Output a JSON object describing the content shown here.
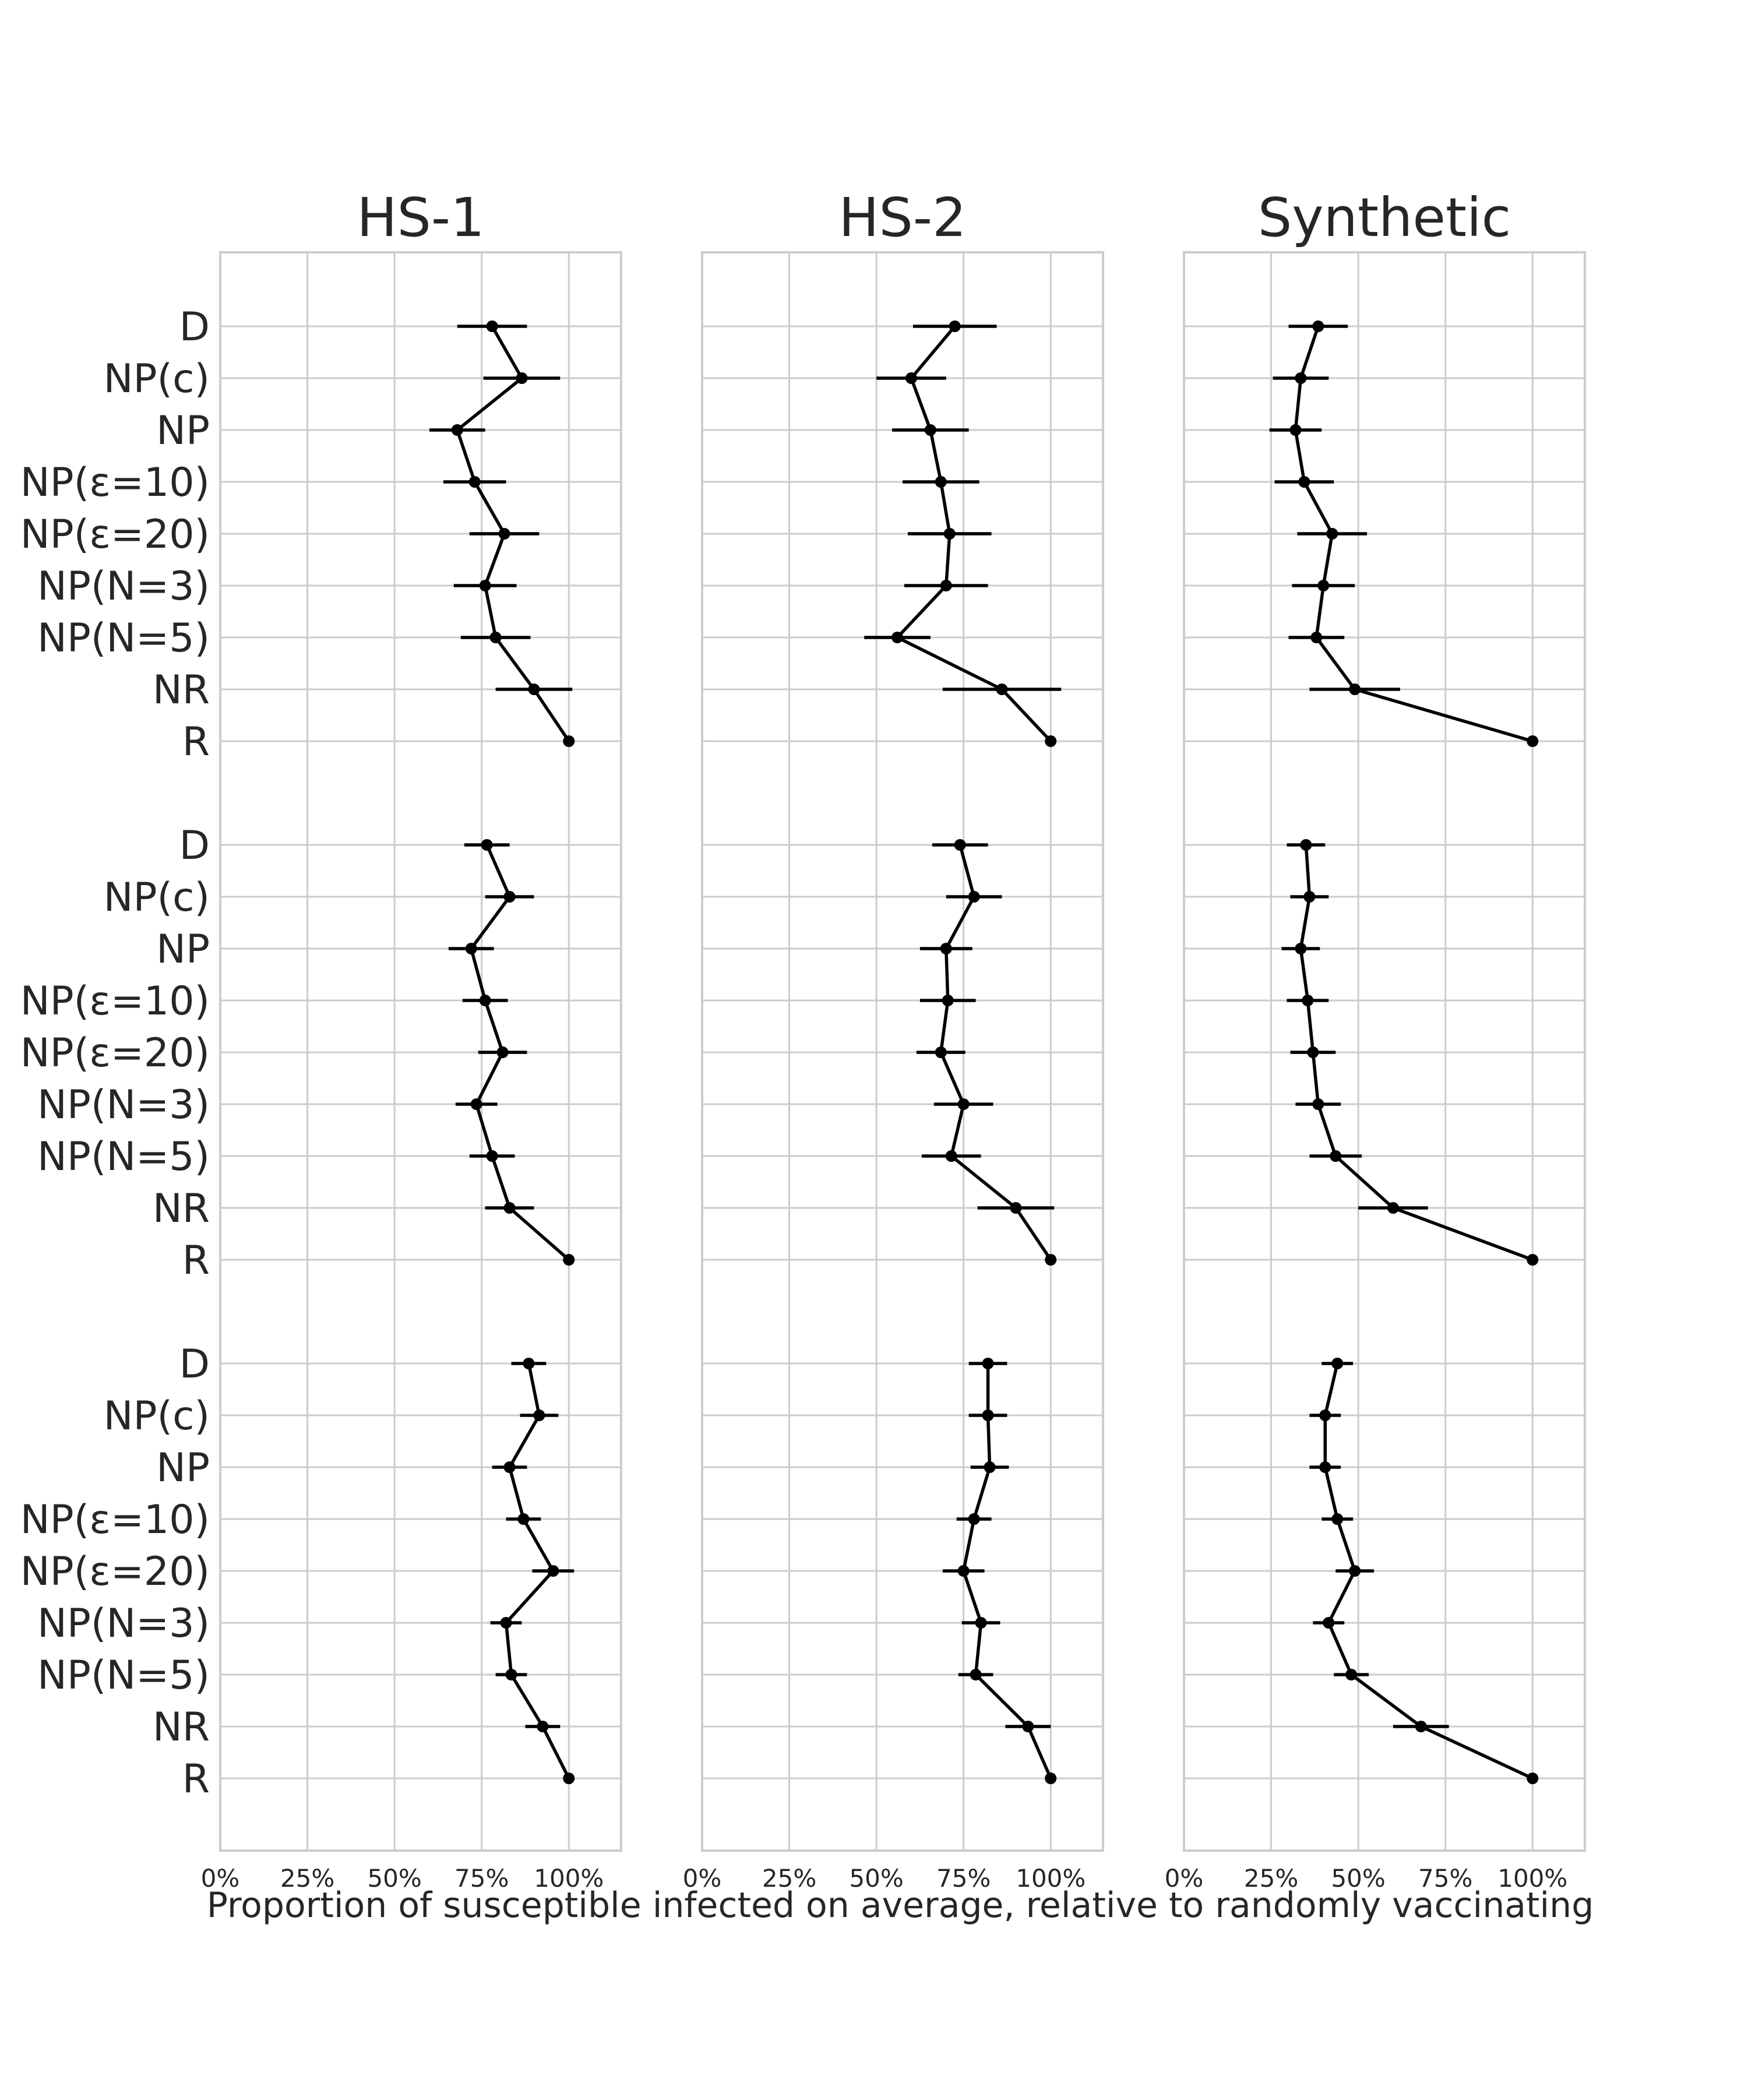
{
  "chart_data": {
    "type": "scatter",
    "xlabel": "Proportion of susceptible infected on average, relative to randomly vaccinating",
    "xlim": [
      0,
      1.15
    ],
    "xticks": [
      0,
      0.25,
      0.5,
      0.75,
      1.0
    ],
    "xtick_labels": [
      "0%",
      "25%",
      "50%",
      "75%",
      "100%"
    ],
    "grid": true,
    "categories": [
      "D",
      "NP(c)",
      "NP",
      "NP(ε=10)",
      "NP(ε=20)",
      "NP(N=3)",
      "NP(N=5)",
      "NR",
      "R"
    ],
    "columns": [
      "HS-1",
      "HS-2",
      "Synthetic"
    ],
    "rows": 3,
    "panels": [
      {
        "title": "HS-1",
        "row": 0,
        "col": 0,
        "values": [
          0.78,
          0.865,
          0.68,
          0.73,
          0.815,
          0.76,
          0.79,
          0.9,
          1.0
        ],
        "errors": [
          0.1,
          0.11,
          0.08,
          0.09,
          0.1,
          0.09,
          0.1,
          0.11,
          0
        ]
      },
      {
        "title": "HS-2",
        "row": 0,
        "col": 1,
        "values": [
          0.725,
          0.6,
          0.655,
          0.685,
          0.71,
          0.7,
          0.56,
          0.86,
          1.0
        ],
        "errors": [
          0.12,
          0.1,
          0.11,
          0.11,
          0.12,
          0.12,
          0.095,
          0.17,
          0
        ]
      },
      {
        "title": "Synthetic",
        "row": 0,
        "col": 2,
        "values": [
          0.385,
          0.335,
          0.32,
          0.345,
          0.425,
          0.4,
          0.38,
          0.49,
          1.0
        ],
        "errors": [
          0.085,
          0.08,
          0.075,
          0.085,
          0.1,
          0.09,
          0.08,
          0.13,
          0
        ]
      },
      {
        "title": "HS-1",
        "row": 1,
        "col": 0,
        "values": [
          0.765,
          0.83,
          0.72,
          0.76,
          0.81,
          0.735,
          0.78,
          0.83,
          1.0
        ],
        "errors": [
          0.065,
          0.07,
          0.065,
          0.065,
          0.07,
          0.06,
          0.065,
          0.07,
          0
        ]
      },
      {
        "title": "HS-2",
        "row": 1,
        "col": 1,
        "values": [
          0.74,
          0.78,
          0.7,
          0.705,
          0.685,
          0.75,
          0.715,
          0.9,
          1.0
        ],
        "errors": [
          0.08,
          0.08,
          0.075,
          0.08,
          0.07,
          0.085,
          0.085,
          0.11,
          0
        ]
      },
      {
        "title": "Synthetic",
        "row": 1,
        "col": 2,
        "values": [
          0.35,
          0.36,
          0.335,
          0.355,
          0.37,
          0.385,
          0.435,
          0.6,
          1.0
        ],
        "errors": [
          0.055,
          0.055,
          0.055,
          0.06,
          0.065,
          0.065,
          0.075,
          0.1,
          0
        ]
      },
      {
        "title": "HS-1",
        "row": 2,
        "col": 0,
        "values": [
          0.885,
          0.915,
          0.83,
          0.87,
          0.955,
          0.82,
          0.835,
          0.925,
          1.0
        ],
        "errors": [
          0.05,
          0.055,
          0.05,
          0.05,
          0.06,
          0.045,
          0.045,
          0.05,
          0
        ]
      },
      {
        "title": "HS-2",
        "row": 2,
        "col": 1,
        "values": [
          0.82,
          0.82,
          0.825,
          0.78,
          0.75,
          0.8,
          0.785,
          0.935,
          1.0
        ],
        "errors": [
          0.055,
          0.055,
          0.055,
          0.05,
          0.06,
          0.055,
          0.05,
          0.065,
          0
        ]
      },
      {
        "title": "Synthetic",
        "row": 2,
        "col": 2,
        "values": [
          0.44,
          0.405,
          0.405,
          0.44,
          0.49,
          0.415,
          0.48,
          0.68,
          1.0
        ],
        "errors": [
          0.045,
          0.045,
          0.045,
          0.045,
          0.055,
          0.045,
          0.05,
          0.08,
          0
        ]
      }
    ]
  }
}
